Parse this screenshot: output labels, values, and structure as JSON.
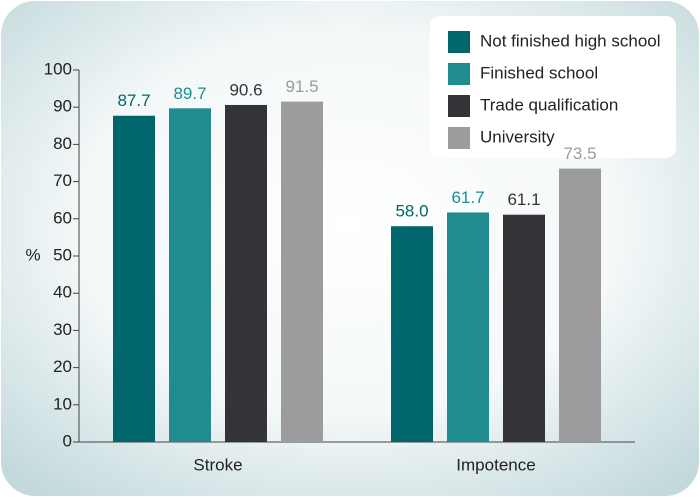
{
  "chart_data": {
    "type": "bar",
    "categories": [
      "Stroke",
      "Impotence"
    ],
    "y_label": "%",
    "ylim": [
      0,
      100
    ],
    "yticks": [
      0,
      10,
      20,
      30,
      40,
      50,
      60,
      70,
      80,
      90,
      100
    ],
    "grid": false,
    "legend": "top-right",
    "series": [
      {
        "name": "Not finished high school",
        "color": "#00666b",
        "values": [
          87.7,
          58
        ],
        "value_labels": [
          "87.7",
          "58.0"
        ]
      },
      {
        "name": "Finished school",
        "color": "#218c8f",
        "values": [
          89.7,
          61.7
        ],
        "value_labels": [
          "89.7",
          "61.7"
        ]
      },
      {
        "name": "Trade qualification",
        "color": "#343438",
        "values": [
          90.6,
          61.1
        ],
        "value_labels": [
          "90.6",
          "61.1"
        ]
      },
      {
        "name": "University",
        "color": "#9c9c9e",
        "values": [
          91.5,
          73.5
        ],
        "value_labels": [
          "91.5",
          "73.5"
        ]
      }
    ]
  }
}
